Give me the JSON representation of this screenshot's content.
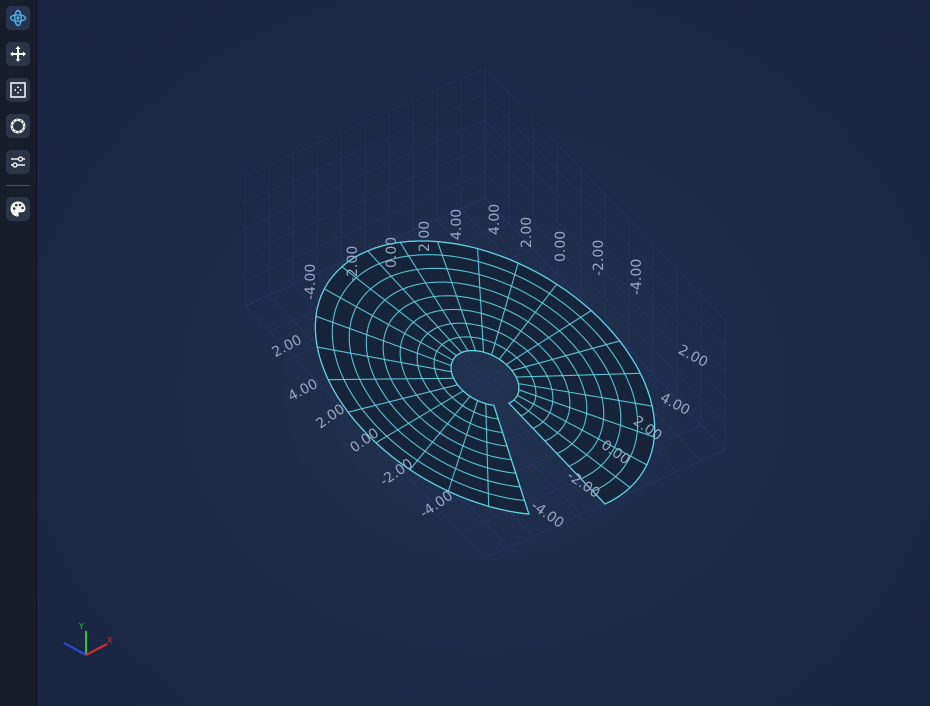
{
  "toolbar": {
    "tools": [
      {
        "name": "orbit",
        "icon": "orbit-icon",
        "active": true
      },
      {
        "name": "pan",
        "icon": "pan-arrows-icon",
        "active": false
      },
      {
        "name": "zoom-extents",
        "icon": "zoom-extents-icon",
        "active": false
      },
      {
        "name": "reset-view",
        "icon": "reset-ring-icon",
        "active": false
      },
      {
        "name": "settings",
        "icon": "sliders-icon",
        "active": false
      },
      {
        "name": "theme",
        "icon": "palette-icon",
        "active": false
      }
    ],
    "accent": "#4fb3e8"
  },
  "chart_data": {
    "type": "surface-mesh-3d",
    "description_shape": "annular disc with a missing wedge, rendered as wireframe mesh",
    "series": [
      {
        "kind": "polar-mesh",
        "inner_radius": 1.0,
        "outer_radius": 5.0,
        "theta_start_deg": 30,
        "theta_end_deg": 360,
        "radial_lines": 24,
        "rings": 8,
        "mesh_color": "#5fd3e6",
        "fill_color": "#152436"
      }
    ],
    "axes": {
      "x": {
        "range": [
          -5,
          5
        ],
        "ticks": [
          "-4.00",
          "-2.00",
          "0.00",
          "2.00",
          "4.00"
        ]
      },
      "y": {
        "range": [
          -5,
          5
        ],
        "ticks": [
          "-4.00",
          "-2.00",
          "0.00",
          "2.00",
          "4.00"
        ]
      },
      "z": {
        "range": [
          -5,
          5
        ],
        "ticks": [
          "-4.00",
          "-2.00",
          "0.00",
          "2.00",
          "4.00"
        ]
      },
      "grid": true,
      "grid_color": "#2c3c78"
    },
    "tick_labels": {
      "top_left": [
        "-4.00",
        "-2.00",
        "0.00",
        "2.00",
        "4.00"
      ],
      "top_right": [
        "4.00",
        "2.00",
        "0.00",
        "-2.00",
        "-4.00"
      ],
      "left_vertical": [
        "2.00",
        "4.00"
      ],
      "right_vertical": [
        "2.00",
        "4.00"
      ],
      "bottom_left": [
        "2.00",
        "0.00",
        "-2.00",
        "-4.00"
      ],
      "bottom_right": [
        "2.00",
        "0.00",
        "-2.00",
        "-4.00"
      ]
    },
    "gizmo": {
      "x_label": "X",
      "y_label": "Y",
      "x_color": "#e02b2b",
      "y_color": "#22c933",
      "z_color": "#2b4ee0"
    }
  }
}
